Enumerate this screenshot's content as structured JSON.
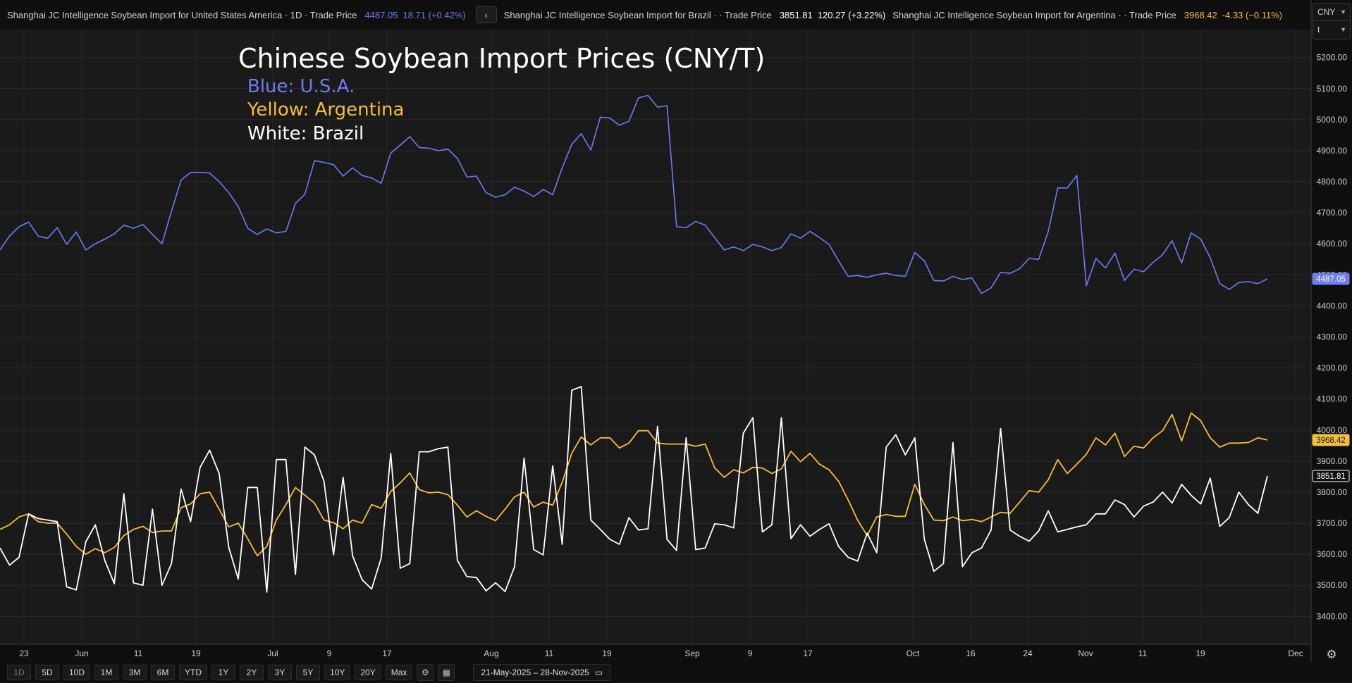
{
  "legend_bar": {
    "usa": {
      "name": "Shanghai JC Intelligence Soybean Import for United States America · 1D · Trade Price",
      "last": "4487.05",
      "change": "18.71 (+0.42%)",
      "color": "#6e7cf0"
    },
    "nav_arrow": "‹",
    "brazil": {
      "name": "Shanghai JC Intelligence Soybean Import for Brazil · · Trade Price",
      "last": "3851.81",
      "change": "120.27 (+3.22%)",
      "color": "#ffffff"
    },
    "argentina": {
      "name": "Shanghai JC Intelligence Soybean Import for Argentina · · Trade Price",
      "last": "3968.42",
      "change": "-4.33 (−0.11%)",
      "color": "#f2bf3c"
    }
  },
  "unit_selector": {
    "currency": "CNY",
    "unit": "t"
  },
  "toolbar": {
    "ranges": [
      "1D",
      "5D",
      "10D",
      "1M",
      "3M",
      "6M",
      "YTD",
      "1Y",
      "2Y",
      "3Y",
      "5Y",
      "10Y",
      "20Y",
      "Max"
    ],
    "date_range": "21-May-2025 – 28-Nov-2025"
  },
  "icons": {
    "settings": "gear-icon",
    "table": "table-icon",
    "calendar": "calendar-icon",
    "chart_settings": "gear-icon"
  },
  "chart_data": {
    "type": "line",
    "title": "Chinese Soybean Import Prices (CNY/T)",
    "annotations": [
      {
        "text": "Blue: U.S.A.",
        "color": "#6e7cf0"
      },
      {
        "text": "Yellow: Argentina",
        "color": "#f2bf3c"
      },
      {
        "text": "White: Brazil",
        "color": "#ffffff"
      }
    ],
    "x_ticks": [
      "23",
      "Jun",
      "11",
      "19",
      "Jul",
      "9",
      "17",
      "Aug",
      "11",
      "19",
      "Sep",
      "9",
      "17",
      "Oct",
      "16",
      "24",
      "Nov",
      "11",
      "19",
      "Dec"
    ],
    "y_ticks": [
      "3400.00",
      "3500.00",
      "3600.00",
      "3700.00",
      "3800.00",
      "3900.00",
      "4000.00",
      "4100.00",
      "4200.00",
      "4300.00",
      "4400.00",
      "4500.00",
      "4600.00",
      "4700.00",
      "4800.00",
      "4900.00",
      "5000.00",
      "5100.00",
      "5200.00"
    ],
    "ylim": [
      3310,
      5290
    ],
    "grid": true,
    "x_period": {
      "start": "2025-05-21",
      "end": "2025-11-28"
    },
    "series": [
      {
        "color": "#6e7cf0",
        "last_label": "4487.05",
        "values": [
          4580,
          4625,
          4655,
          4670,
          4625,
          4618,
          4652,
          4598,
          4638,
          4580,
          4600,
          4615,
          4632,
          4660,
          4650,
          4662,
          4630,
          4600,
          4705,
          4805,
          4830,
          4830,
          4828,
          4800,
          4765,
          4720,
          4650,
          4630,
          4648,
          4635,
          4640,
          4730,
          4760,
          4868,
          4862,
          4855,
          4818,
          4845,
          4820,
          4812,
          4795,
          4892,
          4918,
          4945,
          4910,
          4908,
          4900,
          4905,
          4875,
          4815,
          4818,
          4765,
          4750,
          4758,
          4782,
          4770,
          4752,
          4775,
          4758,
          4845,
          4920,
          4955,
          4902,
          5008,
          5005,
          4982,
          4995,
          5070,
          5078,
          5040,
          5045,
          4655,
          4652,
          4672,
          4660,
          4620,
          4580,
          4590,
          4578,
          4598,
          4590,
          4578,
          4588,
          4632,
          4618,
          4640,
          4620,
          4598,
          4545,
          4495,
          4498,
          4492,
          4500,
          4505,
          4498,
          4495,
          4572,
          4545,
          4482,
          4480,
          4495,
          4485,
          4490,
          4440,
          4458,
          4508,
          4505,
          4520,
          4553,
          4550,
          4640,
          4780,
          4780,
          4820,
          4465,
          4553,
          4522,
          4570,
          4482,
          4518,
          4510,
          4540,
          4565,
          4610,
          4538,
          4635,
          4615,
          4555,
          4472,
          4453,
          4475,
          4478,
          4472,
          4487
        ]
      },
      {
        "color": "#f2bf3c",
        "last_label": "3968.42",
        "values": [
          3680,
          3695,
          3720,
          3730,
          3705,
          3700,
          3700,
          3665,
          3625,
          3600,
          3618,
          3605,
          3622,
          3660,
          3680,
          3690,
          3670,
          3675,
          3675,
          3750,
          3762,
          3795,
          3800,
          3745,
          3688,
          3700,
          3650,
          3595,
          3625,
          3710,
          3760,
          3815,
          3790,
          3765,
          3710,
          3702,
          3682,
          3710,
          3700,
          3760,
          3748,
          3802,
          3830,
          3862,
          3808,
          3798,
          3800,
          3792,
          3758,
          3720,
          3740,
          3722,
          3708,
          3745,
          3785,
          3800,
          3752,
          3768,
          3758,
          3832,
          3925,
          3978,
          3952,
          3975,
          3975,
          3942,
          3958,
          3998,
          3998,
          3958,
          3955,
          3955,
          3955,
          3948,
          3955,
          3878,
          3848,
          3872,
          3862,
          3880,
          3878,
          3860,
          3875,
          3932,
          3898,
          3925,
          3890,
          3872,
          3835,
          3775,
          3710,
          3660,
          3720,
          3728,
          3722,
          3722,
          3825,
          3760,
          3710,
          3708,
          3720,
          3708,
          3712,
          3705,
          3720,
          3735,
          3732,
          3768,
          3805,
          3800,
          3840,
          3905,
          3860,
          3890,
          3922,
          3975,
          3952,
          3990,
          3915,
          3948,
          3942,
          3975,
          3998,
          4050,
          3965,
          4055,
          4030,
          3975,
          3945,
          3958,
          3958,
          3960,
          3975,
          3968
        ]
      },
      {
        "color": "#ffffff",
        "last_label": "3851.81",
        "values": [
          3620,
          3565,
          3590,
          3730,
          3715,
          3710,
          3705,
          3495,
          3485,
          3640,
          3695,
          3580,
          3505,
          3795,
          3508,
          3500,
          3745,
          3500,
          3570,
          3810,
          3705,
          3880,
          3935,
          3860,
          3622,
          3520,
          3815,
          3815,
          3478,
          3905,
          3905,
          3535,
          3945,
          3920,
          3835,
          3598,
          3848,
          3595,
          3518,
          3488,
          3588,
          3925,
          3555,
          3570,
          3930,
          3930,
          3940,
          3945,
          3580,
          3528,
          3525,
          3482,
          3508,
          3480,
          3560,
          3910,
          3615,
          3598,
          3885,
          3632,
          4128,
          4140,
          3710,
          3680,
          3648,
          3632,
          3718,
          3678,
          3682,
          4012,
          3648,
          3612,
          3975,
          3615,
          3620,
          3698,
          3695,
          3685,
          3990,
          4040,
          3672,
          3695,
          4040,
          3650,
          3695,
          3658,
          3680,
          3698,
          3625,
          3590,
          3578,
          3668,
          3605,
          3945,
          3985,
          3920,
          3975,
          3648,
          3545,
          3570,
          3960,
          3560,
          3605,
          3620,
          3678,
          4005,
          3678,
          3658,
          3642,
          3675,
          3740,
          3672,
          3680,
          3688,
          3695,
          3730,
          3730,
          3775,
          3760,
          3720,
          3755,
          3768,
          3800,
          3765,
          3825,
          3790,
          3762,
          3845,
          3690,
          3718,
          3800,
          3760,
          3732,
          3852
        ]
      }
    ]
  }
}
